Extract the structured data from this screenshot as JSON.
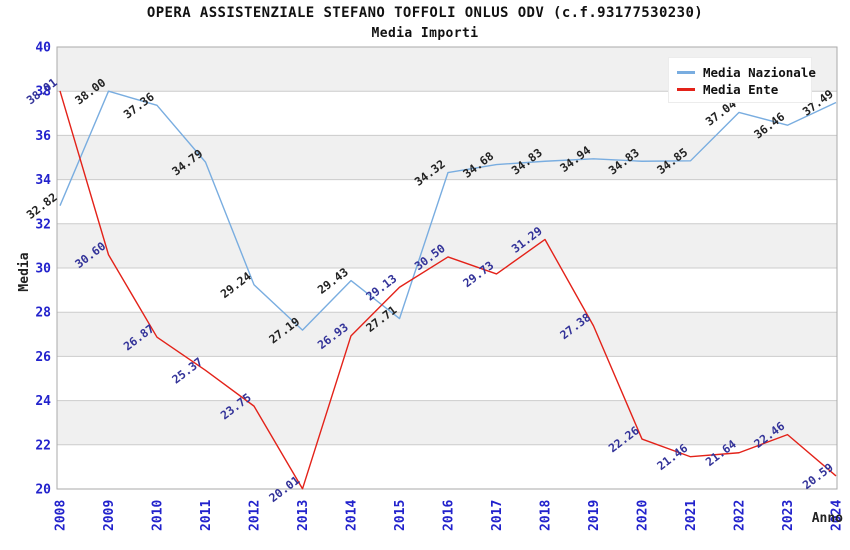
{
  "header": {
    "title": "OPERA ASSISTENZIALE STEFANO TOFFOLI ONLUS ODV (c.f.93177530230)",
    "subtitle": "Media Importi"
  },
  "chart_data": {
    "type": "line",
    "x": [
      2008,
      2009,
      2010,
      2011,
      2012,
      2013,
      2014,
      2015,
      2016,
      2017,
      2018,
      2019,
      2020,
      2021,
      2022,
      2023,
      2024
    ],
    "xlabel": "Anno",
    "ylabel": "Media",
    "ylim": [
      20,
      40
    ],
    "ytick_step": 2,
    "yticks": [
      40,
      38,
      36,
      34,
      32,
      30,
      28,
      26,
      24,
      22,
      20
    ],
    "grid": true,
    "alternating_bands": true,
    "legend_position": "top-right-inside",
    "series": [
      {
        "name": "Media Nazionale",
        "color": "#79ade0",
        "label_color": "#222222",
        "values": [
          32.82,
          38.0,
          37.36,
          34.79,
          29.24,
          27.19,
          29.43,
          27.71,
          34.32,
          34.68,
          34.83,
          34.94,
          34.83,
          34.85,
          37.04,
          36.46,
          37.49
        ]
      },
      {
        "name": "Media Ente",
        "color": "#e32219",
        "label_color": "#333399",
        "values": [
          38.01,
          30.6,
          26.87,
          25.37,
          23.75,
          20.01,
          26.93,
          29.13,
          30.5,
          29.73,
          31.29,
          27.38,
          22.26,
          21.46,
          21.64,
          22.46,
          20.59
        ]
      }
    ]
  },
  "legend": {
    "items": [
      {
        "label": "Media Nazionale",
        "color": "#79ade0"
      },
      {
        "label": "Media Ente",
        "color": "#e32219"
      }
    ]
  },
  "colors": {
    "axis_tick_label": "#2222cc",
    "band_gray": "#f0f0f0",
    "grid_line": "#cccccc",
    "plot_border": "#aaaaaa"
  }
}
